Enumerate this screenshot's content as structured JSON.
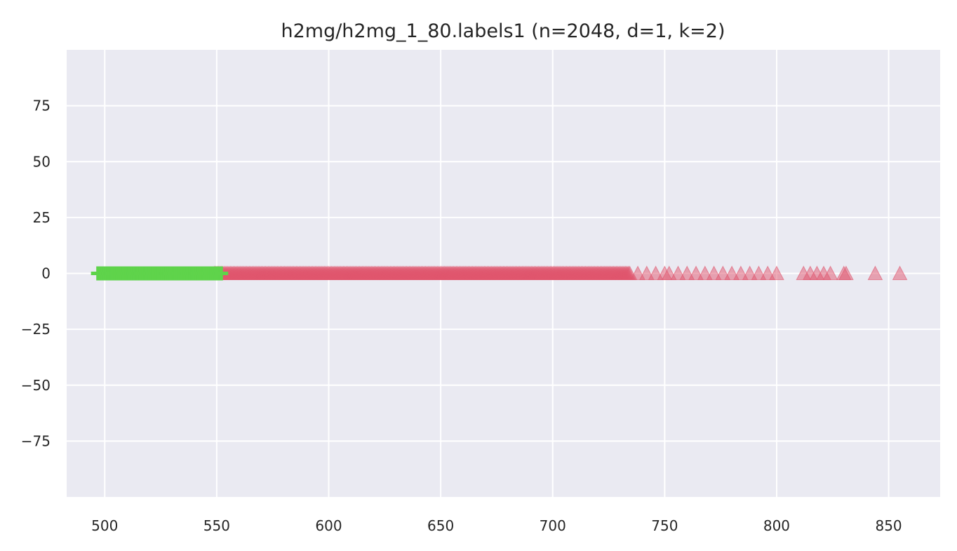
{
  "chart_data": {
    "type": "scatter",
    "title": "h2mg/h2mg_1_80.labels1 (n=2048, d=1, k=2)",
    "xlabel": "",
    "ylabel": "",
    "xlim": [
      483,
      873
    ],
    "ylim": [
      -100,
      100
    ],
    "grid": true,
    "legend": "none",
    "x_ticks": [
      500,
      550,
      600,
      650,
      700,
      750,
      800,
      850
    ],
    "y_ticks": [
      75,
      50,
      25,
      0,
      -25,
      -50,
      -75
    ],
    "x_tick_labels": [
      "500",
      "550",
      "600",
      "650",
      "700",
      "750",
      "800",
      "850"
    ],
    "y_tick_labels": [
      "75",
      "50",
      "25",
      "0",
      "−25",
      "−50",
      "−75"
    ],
    "colors": {
      "background": "#eaeaf2",
      "grid": "#ffffff",
      "cluster_0": "#5fd34b",
      "cluster_1": "#e0566e"
    },
    "series": [
      {
        "marker": "plus",
        "color": "#5fd34b",
        "x_range": [
          497,
          552
        ],
        "y": 0
      },
      {
        "marker": "triangle",
        "color": "#e0566e",
        "x_range": [
          549,
          800
        ],
        "y": 0,
        "sparse_x": [
          738,
          742,
          746,
          750,
          752,
          756,
          760,
          764,
          768,
          772,
          776,
          780,
          784,
          788,
          792,
          796,
          800,
          812,
          815,
          818,
          821,
          824,
          830,
          831,
          844,
          855
        ]
      }
    ]
  }
}
